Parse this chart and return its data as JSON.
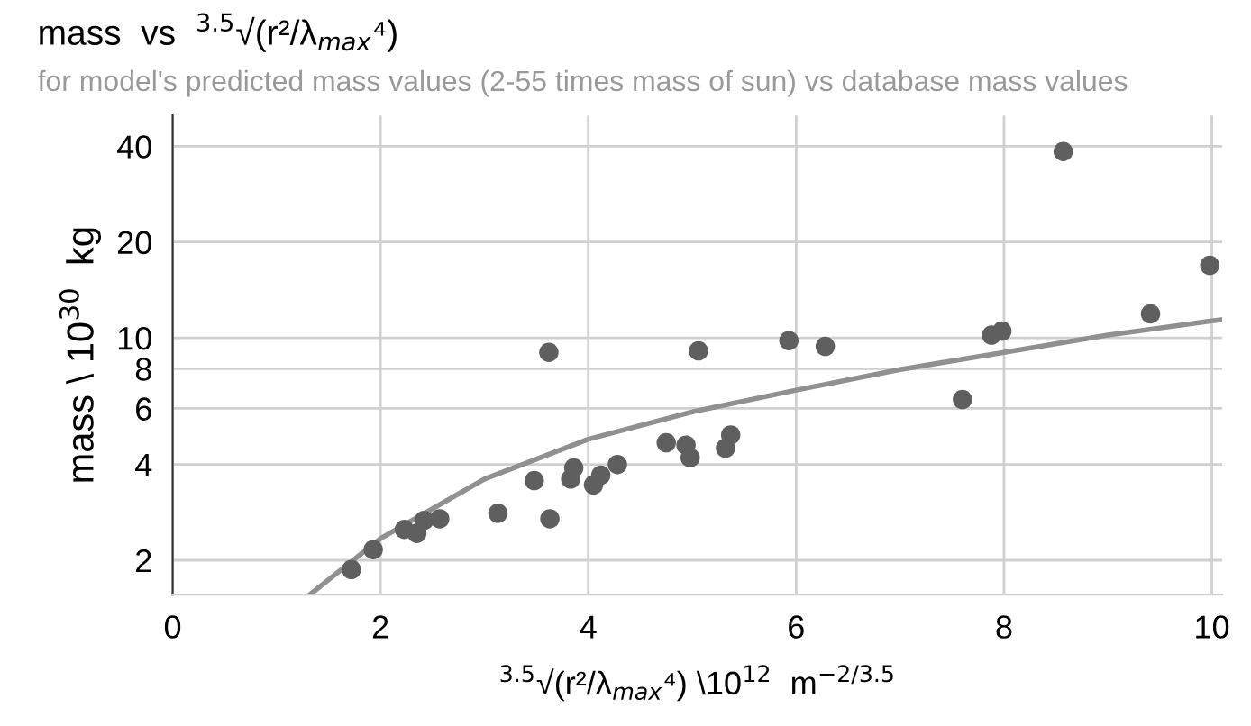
{
  "chart_data": {
    "type": "scatter",
    "title": "mass  vs  $^{3.5}$√(r²/λ$_{max}$⁴)",
    "subtitle": "for model's predicted mass values (2-55 times mass of sun) vs database mass values",
    "xlabel": "$^{3.5}$√(r²/λ$_{max}$⁴) \\10$^{12}$  m$^{−2/3.5}$",
    "ylabel": "mass \\ 10$^{30}$  kg",
    "series": [
      {
        "color": "#5f5f5f",
        "marker": "circle",
        "x": [
          1.72,
          1.93,
          2.23,
          2.35,
          2.42,
          2.5,
          2.57,
          3.13,
          3.48,
          3.62,
          3.63,
          3.83,
          3.86,
          4.05,
          4.12,
          4.28,
          4.75,
          4.94,
          4.98,
          5.06,
          5.25,
          5.32,
          5.37,
          5.93,
          6.28,
          7.6,
          7.88,
          7.98,
          8.57,
          9.41,
          9.98
        ],
        "values": [
          1.87,
          2.16,
          2.5,
          2.43,
          2.67,
          null,
          2.7,
          2.81,
          3.56,
          9.0,
          2.7,
          3.6,
          3.9,
          3.45,
          3.7,
          4.0,
          4.68,
          4.6,
          4.2,
          9.1,
          null,
          4.5,
          4.95,
          9.8,
          9.4,
          6.4,
          10.2,
          10.5,
          38.5,
          11.9,
          16.9
        ]
      },
      {
        "type": "line",
        "color": "#909090",
        "marker": "none",
        "line_style": "solid",
        "x": [
          1.32,
          2,
          3,
          4,
          5,
          6,
          7,
          8,
          9,
          10,
          10.1
        ],
        "values": [
          1.56,
          2.34,
          3.6,
          4.8,
          5.85,
          6.85,
          7.95,
          9.0,
          10.2,
          11.3,
          11.4
        ]
      }
    ],
    "xlim": [
      0,
      10.1
    ],
    "xticks": [
      0,
      2,
      4,
      6,
      8,
      10
    ],
    "ylim": [
      1.56,
      50
    ],
    "yticks": [
      2,
      4,
      6,
      8,
      10,
      20,
      40
    ],
    "log": "y",
    "grid": true,
    "legend": false
  }
}
